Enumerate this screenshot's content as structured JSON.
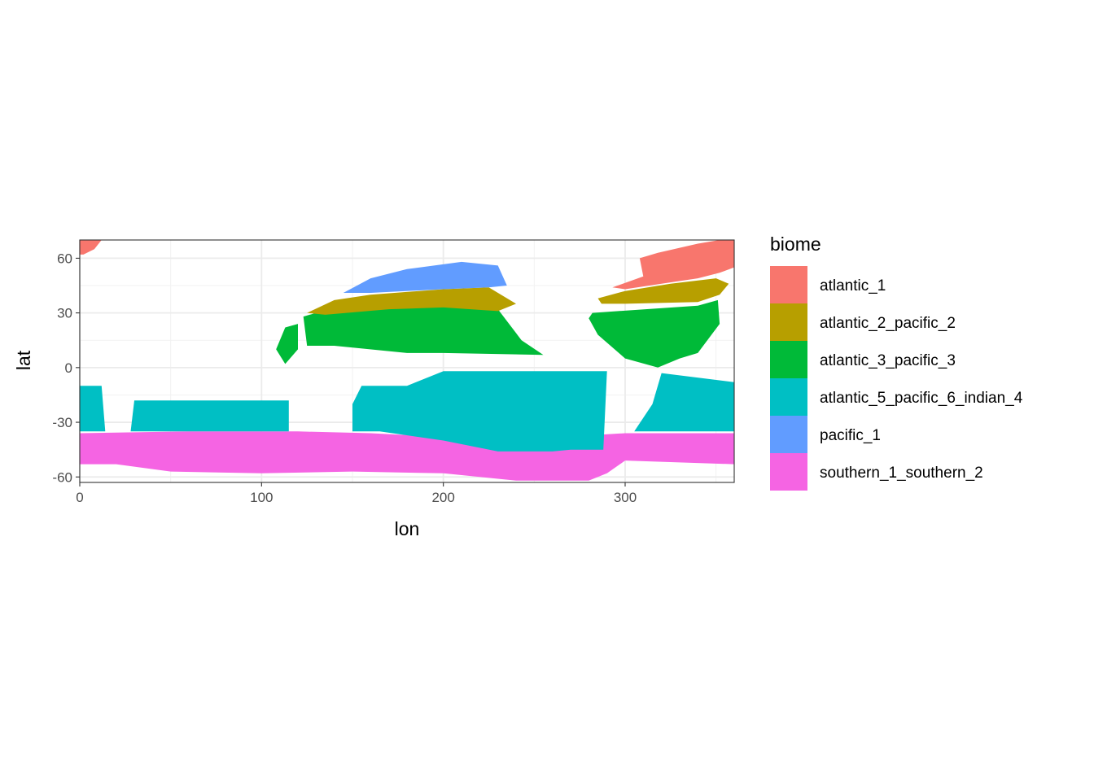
{
  "chart_data": {
    "type": "heatmap",
    "title": "",
    "xlabel": "lon",
    "ylabel": "lat",
    "xlim": [
      0,
      360
    ],
    "ylim": [
      -63,
      70
    ],
    "x_ticks": [
      0,
      100,
      200,
      300
    ],
    "y_ticks": [
      60,
      30,
      0,
      -30,
      -60
    ],
    "grid": true,
    "legend": {
      "title": "biome",
      "position": "right",
      "entries": [
        {
          "name": "atlantic_1",
          "color": "#F8766D"
        },
        {
          "name": "atlantic_2_pacific_2",
          "color": "#B79F00"
        },
        {
          "name": "atlantic_3_pacific_3",
          "color": "#00BA38"
        },
        {
          "name": "atlantic_5_pacific_6_indian_4",
          "color": "#00BFC4"
        },
        {
          "name": "pacific_1",
          "color": "#619CFF"
        },
        {
          "name": "southern_1_southern_2",
          "color": "#F564E3"
        }
      ]
    },
    "regions": [
      {
        "biome": "southern_1_southern_2",
        "polygon": [
          [
            0,
            -36
          ],
          [
            60,
            -35
          ],
          [
            120,
            -35
          ],
          [
            160,
            -36
          ],
          [
            200,
            -38
          ],
          [
            240,
            -44
          ],
          [
            280,
            -44
          ],
          [
            283,
            -37
          ],
          [
            300,
            -36
          ],
          [
            360,
            -36
          ],
          [
            360,
            -53
          ],
          [
            300,
            -51
          ],
          [
            290,
            -58
          ],
          [
            280,
            -62
          ],
          [
            240,
            -62
          ],
          [
            200,
            -58
          ],
          [
            150,
            -57
          ],
          [
            100,
            -58
          ],
          [
            50,
            -57
          ],
          [
            20,
            -53
          ],
          [
            0,
            -53
          ]
        ]
      },
      {
        "biome": "atlantic_5_pacific_6_indian_4",
        "polygon": [
          [
            0,
            -10
          ],
          [
            12,
            -10
          ],
          [
            14,
            -35
          ],
          [
            0,
            -35
          ]
        ]
      },
      {
        "biome": "atlantic_5_pacific_6_indian_4",
        "polygon": [
          [
            30,
            -18
          ],
          [
            115,
            -18
          ],
          [
            115,
            -35
          ],
          [
            28,
            -35
          ]
        ]
      },
      {
        "biome": "atlantic_5_pacific_6_indian_4",
        "polygon": [
          [
            155,
            -10
          ],
          [
            180,
            -10
          ],
          [
            200,
            -2
          ],
          [
            290,
            -2
          ],
          [
            288,
            -45
          ],
          [
            270,
            -45
          ],
          [
            260,
            -46
          ],
          [
            230,
            -46
          ],
          [
            200,
            -40
          ],
          [
            165,
            -35
          ],
          [
            150,
            -35
          ],
          [
            150,
            -20
          ]
        ]
      },
      {
        "biome": "atlantic_5_pacific_6_indian_4",
        "polygon": [
          [
            320,
            -3
          ],
          [
            360,
            -8
          ],
          [
            360,
            -35
          ],
          [
            305,
            -35
          ],
          [
            315,
            -20
          ]
        ]
      },
      {
        "biome": "atlantic_3_pacific_3",
        "polygon": [
          [
            123,
            28
          ],
          [
            130,
            30
          ],
          [
            200,
            35
          ],
          [
            230,
            32
          ],
          [
            243,
            15
          ],
          [
            255,
            7
          ],
          [
            200,
            8
          ],
          [
            180,
            8
          ],
          [
            140,
            12
          ],
          [
            125,
            12
          ]
        ]
      },
      {
        "biome": "atlantic_3_pacific_3",
        "polygon": [
          [
            108,
            10
          ],
          [
            113,
            22
          ],
          [
            120,
            24
          ],
          [
            120,
            10
          ],
          [
            113,
            2
          ]
        ]
      },
      {
        "biome": "atlantic_3_pacific_3",
        "polygon": [
          [
            282,
            30
          ],
          [
            340,
            34
          ],
          [
            351,
            37
          ],
          [
            352,
            24
          ],
          [
            340,
            8
          ],
          [
            330,
            5
          ],
          [
            318,
            0
          ],
          [
            300,
            5
          ],
          [
            285,
            18
          ],
          [
            280,
            27
          ]
        ]
      },
      {
        "biome": "atlantic_2_pacific_2",
        "polygon": [
          [
            125,
            30
          ],
          [
            140,
            37
          ],
          [
            160,
            40
          ],
          [
            200,
            43
          ],
          [
            225,
            44
          ],
          [
            240,
            35
          ],
          [
            230,
            31
          ],
          [
            200,
            33
          ],
          [
            170,
            32
          ],
          [
            135,
            29
          ]
        ]
      },
      {
        "biome": "atlantic_2_pacific_2",
        "polygon": [
          [
            285,
            38
          ],
          [
            300,
            42
          ],
          [
            325,
            46
          ],
          [
            350,
            49
          ],
          [
            357,
            46
          ],
          [
            352,
            40
          ],
          [
            340,
            36
          ],
          [
            300,
            35
          ],
          [
            287,
            35
          ]
        ]
      },
      {
        "biome": "pacific_1",
        "polygon": [
          [
            145,
            41
          ],
          [
            160,
            49
          ],
          [
            180,
            54
          ],
          [
            210,
            58
          ],
          [
            230,
            56
          ],
          [
            235,
            45
          ],
          [
            225,
            44
          ],
          [
            200,
            43
          ],
          [
            160,
            41
          ]
        ]
      },
      {
        "biome": "atlantic_1",
        "polygon": [
          [
            0,
            70
          ],
          [
            12,
            70
          ],
          [
            8,
            65
          ],
          [
            2,
            62
          ],
          [
            0,
            62
          ]
        ]
      },
      {
        "biome": "atlantic_1",
        "polygon": [
          [
            293,
            44
          ],
          [
            310,
            50
          ],
          [
            308,
            60
          ],
          [
            318,
            63
          ],
          [
            340,
            68
          ],
          [
            352,
            70
          ],
          [
            360,
            70
          ],
          [
            360,
            55
          ],
          [
            352,
            52
          ],
          [
            340,
            49
          ],
          [
            320,
            46
          ],
          [
            300,
            43
          ]
        ]
      }
    ]
  }
}
